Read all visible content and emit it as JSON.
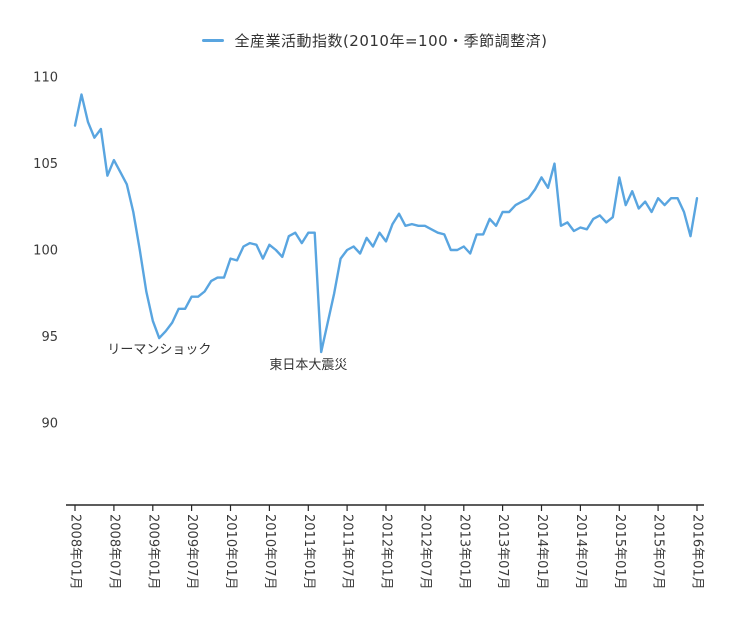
{
  "legend": {
    "label": "全産業活動指数(2010年=100・季節調整済)"
  },
  "chart_data": {
    "type": "line",
    "title": "",
    "xlabel": "",
    "ylabel": "",
    "x_start": "2008-01",
    "x_interval": "monthly",
    "x_tick_labels": [
      "2008年01月",
      "2008年07月",
      "2009年01月",
      "2009年07月",
      "2010年01月",
      "2010年07月",
      "2011年01月",
      "2011年07月",
      "2012年01月",
      "2012年07月",
      "2013年01月",
      "2013年07月",
      "2014年01月",
      "2014年07月",
      "2015年01月",
      "2015年07月",
      "2016年01月"
    ],
    "y_ticks": [
      110,
      105,
      100,
      95,
      90
    ],
    "ylim": [
      85,
      111
    ],
    "grid": false,
    "legend_position": "top-center",
    "line_color": "#59a5e0",
    "axis_color": "#262626",
    "values": [
      107.2,
      109.0,
      107.4,
      106.5,
      107.0,
      104.3,
      105.2,
      104.5,
      103.8,
      102.2,
      100.0,
      97.6,
      95.9,
      94.9,
      95.3,
      95.8,
      96.6,
      96.6,
      97.3,
      97.3,
      97.6,
      98.2,
      98.4,
      98.4,
      99.5,
      99.4,
      100.2,
      100.4,
      100.3,
      99.5,
      100.3,
      100.0,
      99.6,
      100.8,
      101.0,
      100.4,
      101.0,
      101.0,
      94.1,
      95.8,
      97.5,
      99.5,
      100.0,
      100.2,
      99.8,
      100.7,
      100.2,
      101.0,
      100.5,
      101.5,
      102.1,
      101.4,
      101.5,
      101.4,
      101.4,
      101.2,
      101.0,
      100.9,
      100.0,
      100.0,
      100.2,
      99.8,
      100.9,
      100.9,
      101.8,
      101.4,
      102.2,
      102.2,
      102.6,
      102.8,
      103.0,
      103.5,
      104.2,
      103.6,
      105.0,
      101.4,
      101.6,
      101.1,
      101.3,
      101.2,
      101.8,
      102.0,
      101.6,
      101.9,
      104.2,
      102.6,
      103.4,
      102.4,
      102.8,
      102.2,
      103.0,
      102.6,
      103.0,
      103.0,
      102.2,
      100.8,
      103.0
    ],
    "annotations": [
      {
        "label": "リーマンショック",
        "x_index": 5,
        "y_value": 94.0
      },
      {
        "label": "東日本大震災",
        "x_index": 30,
        "y_value": 93.1
      }
    ]
  }
}
